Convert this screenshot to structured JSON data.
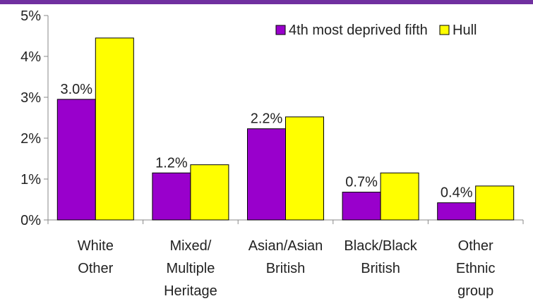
{
  "chart_data": {
    "type": "bar",
    "categories": [
      [
        "White",
        "Other"
      ],
      [
        "Mixed/",
        "Multiple",
        "Heritage"
      ],
      [
        "Asian/Asian",
        "British"
      ],
      [
        "Black/Black",
        "British"
      ],
      [
        "Other",
        "Ethnic",
        "group"
      ]
    ],
    "series": [
      {
        "name": "4th most deprived fifth",
        "color": "#9900cc",
        "values": [
          2.95,
          1.15,
          2.23,
          0.68,
          0.42
        ]
      },
      {
        "name": "Hull",
        "color": "#ffff00",
        "values": [
          4.45,
          1.35,
          2.52,
          1.15,
          0.83
        ]
      }
    ],
    "data_labels": [
      "3.0%",
      "1.2%",
      "2.2%",
      "0.7%",
      "0.4%"
    ],
    "yticks": [
      "0%",
      "1%",
      "2%",
      "3%",
      "4%",
      "5%"
    ],
    "ylim": [
      0,
      5
    ],
    "legend_position": "top-right",
    "grid": false
  }
}
